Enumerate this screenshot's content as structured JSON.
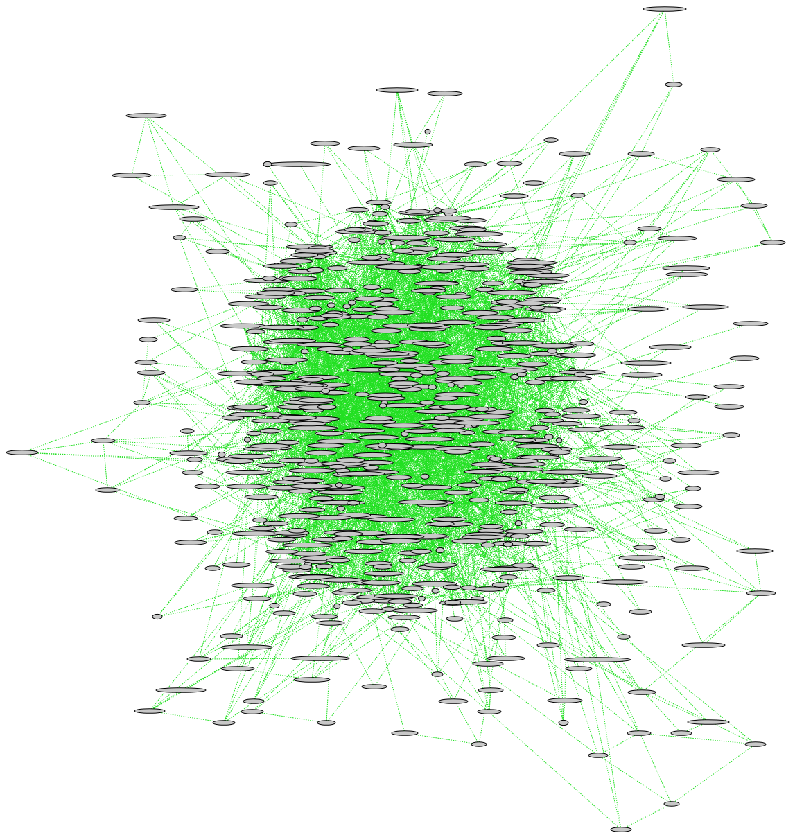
{
  "graph": {
    "type": "force-directed-network",
    "node_shape": "ellipse",
    "node_fill": "#c8c8c8",
    "node_stroke": "#000000",
    "edge_color": "#22e022",
    "edge_style": "dotted",
    "background": "#ffffff",
    "labels_visible": false
  }
}
